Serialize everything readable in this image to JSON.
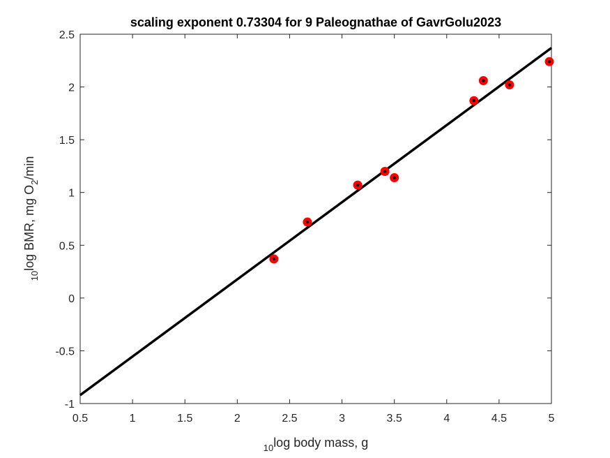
{
  "chart_data": {
    "type": "scatter",
    "title": "scaling exponent 0.73304 for 9 Paleognathae of GavrGolu2023",
    "xlabel": {
      "sub": "10",
      "text": "log body mass, g"
    },
    "ylabel": {
      "sub": "10",
      "pre": "log BMR, mg O",
      "chem_sub": "2",
      "post": "/min"
    },
    "xlim": [
      0.5,
      5
    ],
    "ylim": [
      -1,
      2.5
    ],
    "xticks": [
      "0.5",
      "1",
      "1.5",
      "2",
      "2.5",
      "3",
      "3.5",
      "4",
      "4.5",
      "5"
    ],
    "yticks": [
      "-1",
      "-0.5",
      "0",
      "0.5",
      "1",
      "1.5",
      "2",
      "2.5"
    ],
    "grid": false,
    "series": [
      {
        "type": "scatter",
        "color": "#ff0000",
        "inner_color": "#000000",
        "x": [
          2.35,
          2.67,
          3.15,
          3.41,
          3.5,
          4.26,
          4.35,
          4.6,
          4.98
        ],
        "y": [
          0.37,
          0.72,
          1.07,
          1.2,
          1.14,
          1.87,
          2.06,
          2.02,
          2.24
        ]
      },
      {
        "type": "line",
        "color": "#000000",
        "x": [
          0.5,
          5
        ],
        "y": [
          -0.92,
          2.37
        ]
      }
    ]
  }
}
